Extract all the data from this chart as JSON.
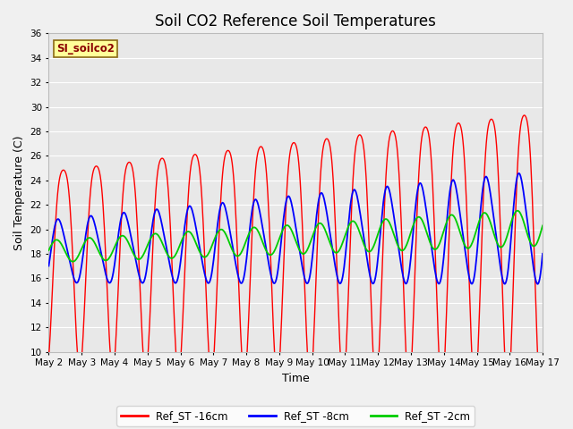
{
  "title": "Soil CO2 Reference Soil Temperatures",
  "xlabel": "Time",
  "ylabel": "Soil Temperature (C)",
  "site_label": "SI_soilco2",
  "ylim": [
    10,
    36
  ],
  "yticks": [
    10,
    12,
    14,
    16,
    18,
    20,
    22,
    24,
    26,
    28,
    30,
    32,
    34,
    36
  ],
  "x_tick_labels": [
    "May 2",
    "May 3",
    "May 4",
    "May 5",
    "May 6",
    "May 7",
    "May 8",
    "May 9",
    "May 10",
    "May 11",
    "May 12",
    "May 13",
    "May 14",
    "May 15",
    "May 16",
    "May 17"
  ],
  "color_16cm": "#ff0000",
  "color_8cm": "#0000ff",
  "color_2cm": "#00cc00",
  "legend_entries": [
    "Ref_ST -16cm",
    "Ref_ST -8cm",
    "Ref_ST -2cm"
  ],
  "fig_bg": "#f0f0f0",
  "plot_bg": "#e8e8e8",
  "grid_color": "#ffffff",
  "days": 15,
  "n_points": 720
}
